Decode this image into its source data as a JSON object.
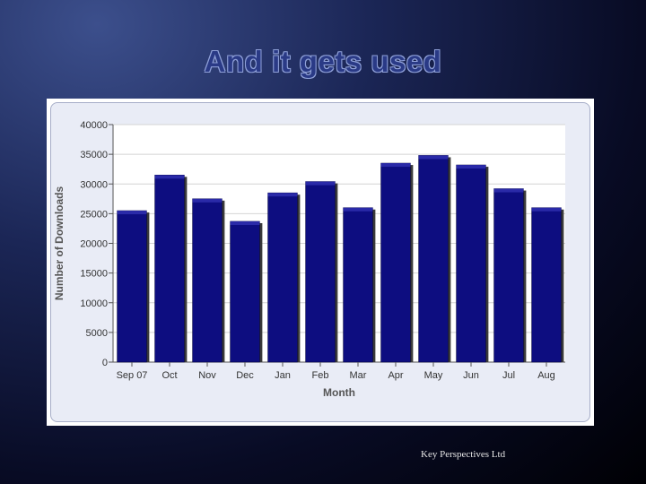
{
  "slide": {
    "title": "And it gets used",
    "footer": "Key Perspectives Ltd"
  },
  "colors": {
    "bar_fill": "#0d0d80",
    "bar_top": "#2a2aa8",
    "bar_shadow": "#3a3a3a",
    "plot_bg": "#ffffff",
    "grid": "#d4d4d4",
    "title": "#2a3a86"
  },
  "chart_data": {
    "type": "bar",
    "title": "",
    "xlabel": "Month",
    "ylabel": "Number of Downloads",
    "categories": [
      "Sep 07",
      "Oct",
      "Nov",
      "Dec",
      "Jan",
      "Feb",
      "Mar",
      "Apr",
      "May",
      "Jun",
      "Jul",
      "Aug"
    ],
    "values": [
      25500,
      31500,
      27500,
      23700,
      28500,
      30400,
      26000,
      33500,
      34800,
      33200,
      29200,
      26000
    ],
    "ylim": [
      0,
      40000
    ],
    "yticks": [
      0,
      5000,
      10000,
      15000,
      20000,
      25000,
      30000,
      35000,
      40000
    ],
    "ytick_labels": [
      "0",
      "5000",
      "10000",
      "15000",
      "20000",
      "25000",
      "30000",
      "35000",
      "40000"
    ],
    "grid": true,
    "legend": "none"
  }
}
